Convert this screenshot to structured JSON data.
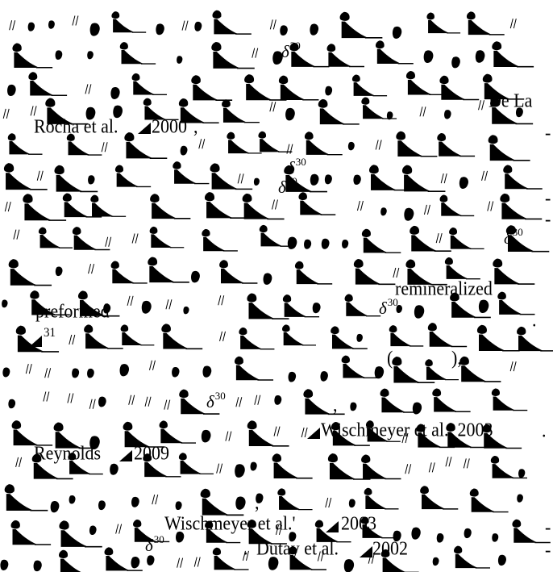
{
  "delta_symbol": "δ",
  "isotope_mass": "30",
  "citations": {
    "de_la": "De La",
    "rocha_et_al": "Rocha et al.",
    "year_2000": "2000",
    "wischmeyer_1": "Wischmeyer et al., 2003",
    "reynolds": "Reynolds",
    "year_2009": "2009",
    "wischmeyer_2": "Wischmeyer et al.'",
    "year_2003": "2003",
    "dutay": "Dutay et al.",
    "year_2002": "2002"
  },
  "terms": {
    "remineralized": "remineralized",
    "preformed": "preformed",
    "isotope_31": "31"
  },
  "punctuation": {
    "comma": ",",
    "comma_2": ",",
    "comma_3": ",",
    "open_paren": "(",
    "close_paren": "),",
    "period": ".",
    "dash": "-",
    "dash_2": "-",
    "dash_3": "-",
    "dash_4": "-",
    "dash_5": "-",
    "period_2": ".",
    "period_3": "."
  },
  "colors": {
    "ink": "#000000",
    "background": "#ffffff"
  }
}
